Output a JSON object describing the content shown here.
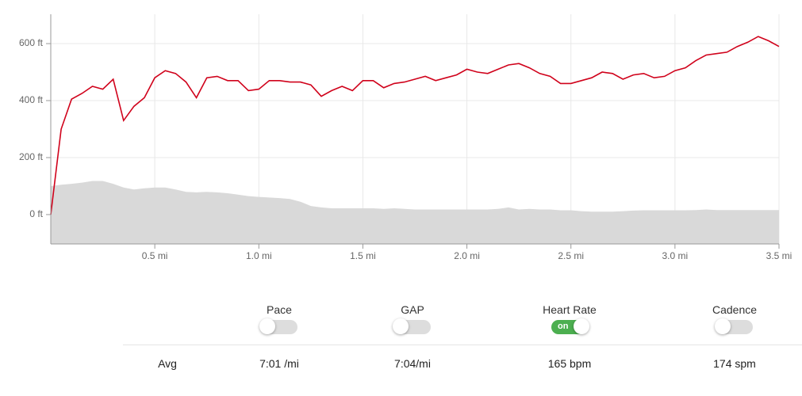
{
  "chart_data": {
    "type": "area-line",
    "xlim": [
      0,
      3.5
    ],
    "xticks": [
      {
        "value": 0.5,
        "label": "0.5 mi"
      },
      {
        "value": 1.0,
        "label": "1.0 mi"
      },
      {
        "value": 1.5,
        "label": "1.5 mi"
      },
      {
        "value": 2.0,
        "label": "2.0 mi"
      },
      {
        "value": 2.5,
        "label": "2.5 mi"
      },
      {
        "value": 3.0,
        "label": "3.0 mi"
      },
      {
        "value": 3.5,
        "label": "3.5 mi"
      }
    ],
    "ylim": [
      -103,
      703
    ],
    "yticks": [
      {
        "value": 0,
        "label": "0 ft"
      },
      {
        "value": 200,
        "label": "200 ft"
      },
      {
        "value": 400,
        "label": "400 ft"
      },
      {
        "value": 600,
        "label": "600 ft"
      }
    ],
    "grid": true,
    "x": [
      0,
      0.05,
      0.1,
      0.15,
      0.2,
      0.25,
      0.3,
      0.35,
      0.4,
      0.45,
      0.5,
      0.55,
      0.6,
      0.65,
      0.7,
      0.75,
      0.8,
      0.85,
      0.9,
      0.95,
      1.0,
      1.05,
      1.1,
      1.15,
      1.2,
      1.25,
      1.3,
      1.35,
      1.4,
      1.45,
      1.5,
      1.55,
      1.6,
      1.65,
      1.7,
      1.75,
      1.8,
      1.85,
      1.9,
      1.95,
      2.0,
      2.05,
      2.1,
      2.15,
      2.2,
      2.25,
      2.3,
      2.35,
      2.4,
      2.45,
      2.5,
      2.55,
      2.6,
      2.65,
      2.7,
      2.75,
      2.8,
      2.85,
      2.9,
      2.95,
      3.0,
      3.05,
      3.1,
      3.15,
      3.2,
      3.25,
      3.3,
      3.35,
      3.4,
      3.45,
      3.5
    ],
    "series": [
      {
        "kind": "area",
        "color": "#d9d9d9",
        "values": [
          100,
          105,
          108,
          112,
          118,
          118,
          108,
          95,
          88,
          92,
          95,
          95,
          88,
          80,
          78,
          80,
          78,
          75,
          70,
          65,
          62,
          60,
          58,
          55,
          45,
          30,
          25,
          22,
          22,
          22,
          22,
          22,
          20,
          22,
          20,
          18,
          18,
          18,
          18,
          18,
          18,
          18,
          18,
          20,
          25,
          18,
          20,
          18,
          18,
          15,
          15,
          12,
          10,
          10,
          10,
          12,
          14,
          15,
          15,
          15,
          15,
          15,
          16,
          18,
          16,
          16,
          16,
          16,
          16,
          16,
          16
        ]
      },
      {
        "kind": "line",
        "color": "#d0021b",
        "values": [
          0,
          300,
          405,
          425,
          450,
          440,
          475,
          330,
          380,
          410,
          480,
          505,
          495,
          465,
          410,
          480,
          485,
          470,
          470,
          435,
          440,
          470,
          470,
          465,
          465,
          455,
          415,
          435,
          450,
          435,
          470,
          470,
          445,
          460,
          465,
          475,
          485,
          470,
          480,
          490,
          510,
          500,
          495,
          510,
          525,
          530,
          515,
          495,
          485,
          460,
          460,
          470,
          480,
          500,
          495,
          475,
          490,
          495,
          480,
          485,
          505,
          515,
          540,
          560,
          565,
          570,
          590,
          605,
          625,
          610,
          590
        ]
      }
    ]
  },
  "toggles": [
    {
      "label": "Pace",
      "on": false
    },
    {
      "label": "GAP",
      "on": false
    },
    {
      "label": "Heart Rate",
      "on": true,
      "state_text": "on"
    },
    {
      "label": "Cadence",
      "on": false
    }
  ],
  "stats": {
    "label": "Avg",
    "values": [
      "7:01 /mi",
      "7:04/mi",
      "165 bpm",
      "174 spm"
    ]
  }
}
